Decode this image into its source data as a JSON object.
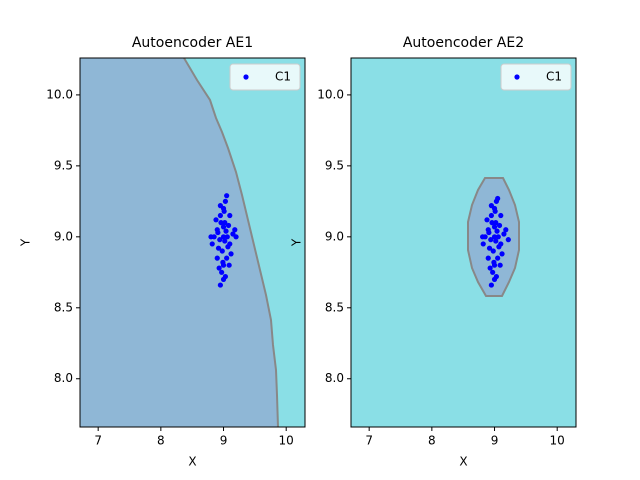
{
  "chart_data": [
    {
      "type": "scatter",
      "title": "Autoencoder AE1",
      "xlabel": "X",
      "ylabel": "Y",
      "x": [
        9.0,
        8.9,
        9.1,
        8.95,
        9.05,
        9.02,
        8.98,
        8.85,
        9.15,
        9.0,
        8.92,
        9.08,
        9.0,
        8.88,
        9.12,
        8.97,
        9.03,
        9.06,
        8.94,
        9.0,
        8.82,
        9.18,
        9.01,
        8.99,
        9.04,
        8.96,
        9.1,
        8.9,
        9.0,
        8.93,
        9.07,
        9.02,
        8.95,
        9.05,
        8.8,
        9.2,
        8.95,
        9.03,
        8.91,
        9.09
      ],
      "series": [
        {
          "name": "C1",
          "color": "#0000ff",
          "values": [
            9.0,
            9.05,
            8.95,
            9.15,
            8.85,
            9.1,
            8.9,
            9.0,
            9.02,
            8.8,
            8.92,
            9.08,
            9.2,
            9.12,
            8.88,
            8.75,
            9.25,
            9.0,
            8.98,
            8.7,
            8.95,
            9.05,
            9.18,
            8.82,
            9.04,
            9.1,
            9.15,
            8.85,
            9.07,
            8.78,
            8.93,
            8.97,
            8.66,
            9.29,
            9.0,
            9.0,
            9.22,
            8.72,
            9.03,
            8.8
          ]
        }
      ],
      "xlim": [
        6.71,
        10.3
      ],
      "ylim": [
        7.66,
        10.26
      ],
      "xticks": [
        7,
        8,
        9,
        10
      ],
      "yticks": [
        {
          "value": 8,
          "label": "8.0"
        },
        8.5,
        {
          "value": 9,
          "label": "9.0"
        },
        9.5,
        {
          "value": 10,
          "label": "10.0"
        }
      ],
      "legend": "upper right"
    },
    {
      "type": "scatter",
      "title": "Autoencoder AE2",
      "xlabel": "X",
      "ylabel": "Y",
      "x": [
        9.0,
        8.9,
        9.1,
        8.95,
        9.05,
        9.02,
        8.98,
        8.85,
        9.15,
        9.0,
        8.92,
        9.08,
        9.0,
        8.88,
        9.12,
        8.97,
        9.03,
        9.06,
        8.94,
        9.0,
        8.82,
        9.18,
        9.01,
        8.99,
        9.04,
        8.96,
        9.1,
        8.9,
        9.0,
        8.93,
        9.07,
        9.02,
        8.95,
        9.05,
        8.81,
        9.22,
        8.95,
        9.03,
        8.91,
        9.09
      ],
      "series": [
        {
          "name": "C1",
          "color": "#0000ff",
          "values": [
            9.0,
            9.05,
            8.95,
            9.15,
            8.85,
            9.1,
            8.9,
            9.0,
            9.02,
            8.8,
            8.92,
            9.08,
            9.2,
            9.12,
            8.88,
            8.75,
            9.25,
            9.0,
            8.98,
            8.7,
            8.95,
            9.05,
            9.18,
            8.82,
            9.04,
            9.1,
            9.15,
            8.85,
            9.07,
            8.78,
            8.93,
            8.97,
            8.66,
            9.27,
            9.0,
            8.98,
            9.22,
            8.72,
            9.03,
            8.8
          ]
        }
      ],
      "xlim": [
        6.71,
        10.3
      ],
      "ylim": [
        7.66,
        10.26
      ],
      "xticks": [
        7,
        8,
        9,
        10
      ],
      "yticks": [
        {
          "value": 8,
          "label": "8.0"
        },
        8.5,
        {
          "value": 9,
          "label": "9.0"
        },
        9.5,
        {
          "value": 10,
          "label": "10.0"
        }
      ],
      "legend": "upper right"
    }
  ]
}
